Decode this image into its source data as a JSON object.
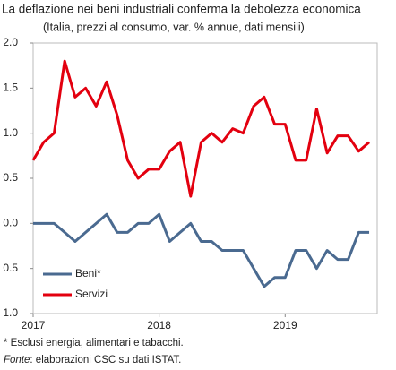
{
  "chart_data": {
    "type": "line",
    "title": "La deflazione nei beni industriali conferma la debolezza economica",
    "subtitle": "(Italia, prezzi al consumo, var. % annue, dati mensili)",
    "categories": [
      "2017",
      null,
      null,
      null,
      null,
      null,
      null,
      null,
      null,
      null,
      null,
      null,
      "2018",
      null,
      null,
      null,
      null,
      null,
      null,
      null,
      null,
      null,
      null,
      null,
      "2019",
      null,
      null,
      null,
      null,
      null,
      null,
      null,
      null
    ],
    "series": [
      {
        "name": "Beni*",
        "color": "#4a6a90",
        "values": [
          0,
          0,
          0,
          -0.1,
          -0.2,
          -0.1,
          0,
          0.1,
          -0.1,
          -0.1,
          0,
          0,
          0.1,
          -0.2,
          -0.1,
          0,
          -0.2,
          -0.2,
          -0.3,
          -0.3,
          -0.3,
          -0.5,
          -0.7,
          -0.6,
          -0.6,
          -0.3,
          -0.3,
          -0.5,
          -0.3,
          -0.4,
          -0.4,
          -0.1,
          -0.1
        ]
      },
      {
        "name": "Servizi",
        "color": "#e3000f",
        "values": [
          0.7,
          0.9,
          1.0,
          1.8,
          1.4,
          1.5,
          1.3,
          1.57,
          1.2,
          0.7,
          0.5,
          0.6,
          0.6,
          0.8,
          0.9,
          0.3,
          0.9,
          1.0,
          0.9,
          1.05,
          1.0,
          1.3,
          1.4,
          1.1,
          1.1,
          0.7,
          0.7,
          1.27,
          0.78,
          0.97,
          0.97,
          0.8,
          0.9
        ]
      }
    ],
    "ylim": [
      -1,
      2
    ],
    "yticks": [
      {
        "value": -1,
        "label": "1.0"
      },
      {
        "value": -0.5,
        "label": "0.5"
      },
      {
        "value": 0,
        "label": "0.0"
      },
      {
        "value": 0.5,
        "label": "0.5"
      },
      {
        "value": 1,
        "label": "1.0"
      },
      {
        "value": 1.5,
        "label": "1.5"
      },
      {
        "value": 2,
        "label": "2.0"
      }
    ],
    "grid": false,
    "legend": "lower-left",
    "notes": [
      "* Esclusi energia, alimentari e tabacchi."
    ],
    "source": {
      "label": "Fonte",
      "text": ": elaborazioni CSC su dati ISTAT."
    }
  }
}
